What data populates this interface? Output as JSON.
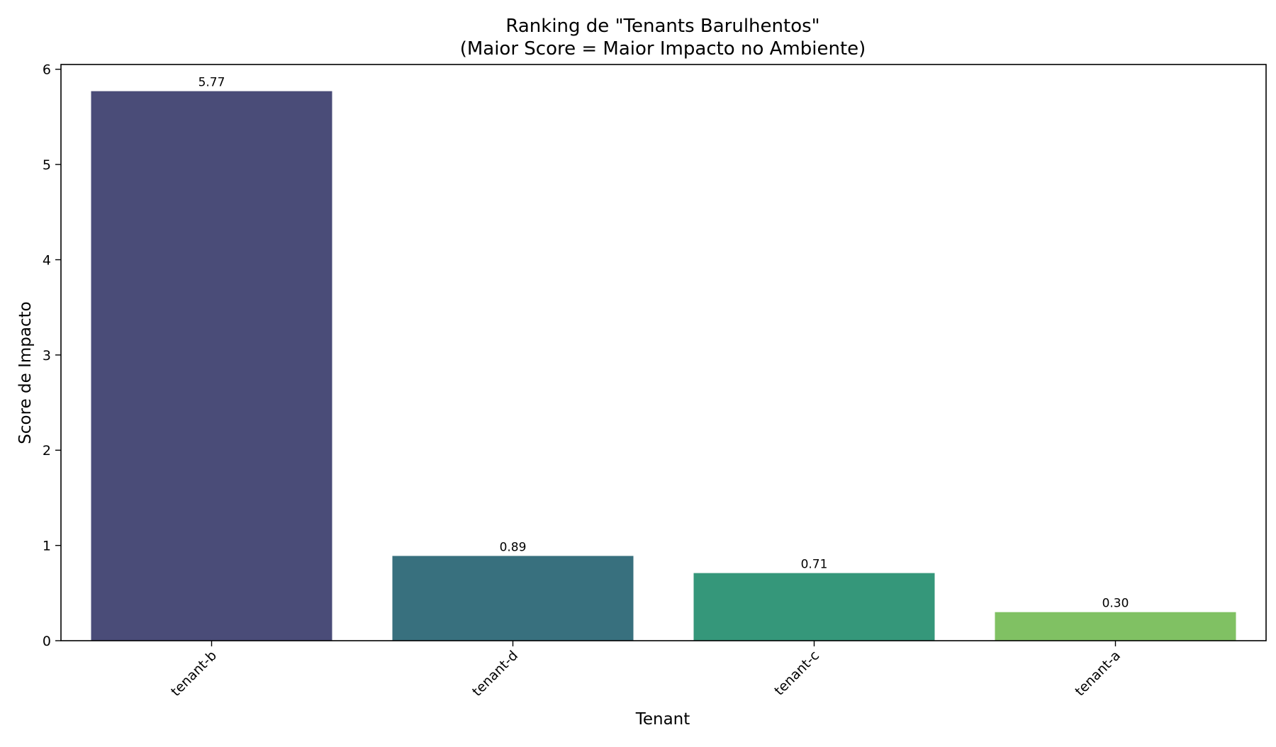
{
  "chart_data": {
    "type": "bar",
    "title_line1": "Ranking de \"Tenants Barulhentos\"",
    "title_line2": "(Maior Score = Maior Impacto no Ambiente)",
    "xlabel": "Tenant",
    "ylabel": "Score de Impacto",
    "categories": [
      "tenant-b",
      "tenant-d",
      "tenant-c",
      "tenant-a"
    ],
    "values": [
      5.77,
      0.89,
      0.71,
      0.3
    ],
    "value_labels": [
      "5.77",
      "0.89",
      "0.71",
      "0.30"
    ],
    "colors": [
      "#4a4c78",
      "#38707e",
      "#35977a",
      "#80c163"
    ],
    "ylim": [
      0,
      6.05
    ],
    "yticks": [
      0,
      1,
      2,
      3,
      4,
      5,
      6
    ],
    "x_tick_rotation": 45,
    "grid": false,
    "legend": "none"
  }
}
